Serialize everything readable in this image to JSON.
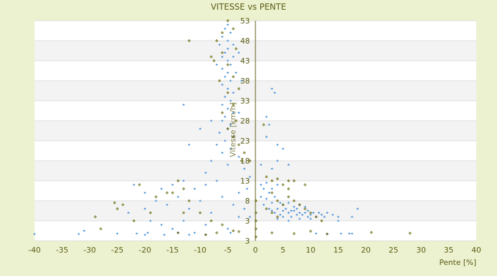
{
  "chart_data": {
    "type": "scatter",
    "title": "VITESSE vs PENTE",
    "xlabel": "Pente [%]",
    "ylabel": "Vitesse [km/h]",
    "xlim": [
      -40,
      40
    ],
    "ylim": [
      -2,
      53
    ],
    "x_ticks": [
      "-40",
      "-35",
      "-30",
      "-25",
      "-20",
      "-15",
      "-10",
      "-5",
      "0",
      "5",
      "10",
      "15",
      "20",
      "25",
      "30",
      "35",
      "40"
    ],
    "y_tick_labels": [
      "53",
      "48",
      "43",
      "38",
      "33",
      "28",
      "23",
      "18",
      "13",
      "8",
      "3",
      "3"
    ],
    "grid": "horizontal bands",
    "legend": "none",
    "colors": {
      "series_a": "#3a88d8",
      "series_b": "#6b6b10",
      "axis": "#5c5c14",
      "background": "#ecf1cf",
      "band": "#f3f3f3"
    },
    "series": [
      {
        "marker": "plus",
        "color": "#3a88d8",
        "points": [
          [
            -5,
            52
          ],
          [
            -5.5,
            51
          ],
          [
            -4.5,
            50
          ],
          [
            -6,
            49
          ],
          [
            -5,
            48
          ],
          [
            -4,
            47
          ],
          [
            -6.5,
            47
          ],
          [
            -5,
            46
          ],
          [
            -5.5,
            45
          ],
          [
            -4,
            44
          ],
          [
            -6,
            44
          ],
          [
            -5,
            43
          ],
          [
            -4.5,
            42
          ],
          [
            -6,
            41
          ],
          [
            -5,
            40
          ],
          [
            -3.5,
            40
          ],
          [
            -5.5,
            39
          ],
          [
            -4.5,
            38
          ],
          [
            -6,
            37
          ],
          [
            -5,
            36
          ],
          [
            -4,
            35
          ],
          [
            -5.5,
            34
          ],
          [
            -4.5,
            33
          ],
          [
            -6,
            32
          ],
          [
            -5,
            31
          ],
          [
            -4,
            30
          ],
          [
            -5.5,
            29
          ],
          [
            -6,
            28
          ],
          [
            -4.5,
            27
          ],
          [
            -5,
            26
          ],
          [
            -6.5,
            25
          ],
          [
            -4,
            24
          ],
          [
            -5.5,
            23
          ],
          [
            -7,
            22
          ],
          [
            -4.5,
            21
          ],
          [
            -6,
            20
          ],
          [
            -3,
            19
          ],
          [
            -8,
            18
          ],
          [
            -5,
            17
          ],
          [
            -2,
            16
          ],
          [
            -9,
            15
          ],
          [
            -1,
            14
          ],
          [
            -13,
            32
          ],
          [
            -10,
            26
          ],
          [
            -12,
            22
          ],
          [
            -8,
            28
          ],
          [
            -3,
            45
          ],
          [
            -2.5,
            38
          ],
          [
            -7,
            42
          ],
          [
            -3,
            30
          ],
          [
            1,
            12
          ],
          [
            1.5,
            11
          ],
          [
            2,
            12.5
          ],
          [
            2.5,
            10
          ],
          [
            3,
            11
          ],
          [
            1,
            9
          ],
          [
            2,
            8.5
          ],
          [
            3.5,
            9
          ],
          [
            4,
            12
          ],
          [
            1.5,
            7
          ],
          [
            2.5,
            6
          ],
          [
            3,
            7.5
          ],
          [
            3.5,
            5
          ],
          [
            4,
            6
          ],
          [
            4.5,
            4.5
          ],
          [
            5,
            5.5
          ],
          [
            5.5,
            6
          ],
          [
            6,
            5
          ],
          [
            6.5,
            4
          ],
          [
            7,
            5.5
          ],
          [
            7.5,
            6
          ],
          [
            8,
            5
          ],
          [
            8.5,
            4.5
          ],
          [
            9,
            5
          ],
          [
            9.5,
            5.5
          ],
          [
            10,
            4.5
          ],
          [
            10.5,
            5
          ],
          [
            11,
            4
          ],
          [
            11.5,
            5
          ],
          [
            12,
            4.5
          ],
          [
            5,
            7
          ],
          [
            6,
            7.5
          ],
          [
            7,
            6.5
          ],
          [
            8,
            7
          ],
          [
            9,
            6.5
          ],
          [
            4,
            3.5
          ],
          [
            6,
            3
          ],
          [
            8,
            3.5
          ],
          [
            10,
            3.5
          ],
          [
            12.5,
            4
          ],
          [
            13,
            5
          ],
          [
            14,
            4.5
          ],
          [
            15,
            4
          ],
          [
            15,
            3
          ],
          [
            17.5,
            4
          ],
          [
            18.5,
            6
          ],
          [
            5,
            4
          ],
          [
            6.5,
            5.5
          ],
          [
            7.5,
            4.5
          ],
          [
            9.5,
            4
          ],
          [
            3,
            5.5
          ],
          [
            4.5,
            7.5
          ],
          [
            3,
            36
          ],
          [
            3.5,
            35
          ],
          [
            2,
            29
          ],
          [
            2,
            24
          ],
          [
            2.5,
            27
          ],
          [
            4,
            22
          ],
          [
            5,
            21
          ],
          [
            4,
            18
          ],
          [
            6,
            17
          ],
          [
            3,
            16
          ],
          [
            1,
            17
          ],
          [
            -22,
            12
          ],
          [
            -20,
            10
          ],
          [
            -17,
            11
          ],
          [
            -15,
            12
          ],
          [
            -13,
            13
          ],
          [
            -11,
            11
          ],
          [
            -9,
            12
          ],
          [
            -7,
            13
          ],
          [
            -18,
            8
          ],
          [
            -16,
            7
          ],
          [
            -14,
            9
          ],
          [
            -12,
            6
          ],
          [
            -10,
            8
          ],
          [
            -8,
            5
          ],
          [
            -6,
            9
          ],
          [
            -4,
            7
          ],
          [
            -3,
            4
          ],
          [
            -20,
            6
          ],
          [
            -23,
            5
          ],
          [
            -19,
            3
          ],
          [
            -17,
            2
          ],
          [
            -15,
            1
          ],
          [
            -13,
            3
          ],
          [
            -11,
            0
          ],
          [
            -9,
            2
          ],
          [
            -5,
            1
          ],
          [
            -3,
            10
          ],
          [
            -2,
            6
          ],
          [
            -1,
            4
          ],
          [
            -1.5,
            11
          ],
          [
            -40,
            -0.3
          ],
          [
            -32,
            -0.3
          ],
          [
            -31,
            0.5
          ],
          [
            -25,
            -0.2
          ],
          [
            -21.5,
            -0.2
          ],
          [
            -20,
            -0.5
          ],
          [
            -19.5,
            0
          ],
          [
            -16.5,
            -0.5
          ],
          [
            -14,
            0
          ],
          [
            -12,
            -0.5
          ],
          [
            -9,
            -0.5
          ],
          [
            -4.5,
            0
          ],
          [
            11,
            -0.2
          ],
          [
            13,
            -0.2
          ],
          [
            15.5,
            -0.2
          ],
          [
            17,
            -0.2
          ],
          [
            17.5,
            -0.2
          ]
        ]
      },
      {
        "marker": "diamond",
        "color": "#6b6b10",
        "points": [
          [
            -6,
            50
          ],
          [
            -5,
            53
          ],
          [
            -4,
            51
          ],
          [
            -7,
            48
          ],
          [
            -3.5,
            46
          ],
          [
            -6,
            45
          ],
          [
            -5,
            42
          ],
          [
            -7.5,
            43
          ],
          [
            -4,
            39
          ],
          [
            -6.5,
            38
          ],
          [
            -3,
            36
          ],
          [
            -5,
            35
          ],
          [
            -4,
            32
          ],
          [
            -6,
            30
          ],
          [
            -3.5,
            28
          ],
          [
            -5,
            26
          ],
          [
            -4,
            24
          ],
          [
            -3,
            22
          ],
          [
            -2,
            20
          ],
          [
            -1,
            18
          ],
          [
            -12,
            48
          ],
          [
            -8,
            44
          ],
          [
            -2.5,
            18
          ],
          [
            -15,
            10
          ],
          [
            -18,
            9
          ],
          [
            -24,
            7
          ],
          [
            -25,
            6
          ],
          [
            -29,
            4
          ],
          [
            -28,
            1
          ],
          [
            -25.5,
            7.5
          ],
          [
            -21,
            12
          ],
          [
            -19,
            5
          ],
          [
            -16,
            10
          ],
          [
            -14,
            13
          ],
          [
            -13,
            11
          ],
          [
            -12,
            8
          ],
          [
            -10,
            5
          ],
          [
            -8,
            3
          ],
          [
            -6,
            2
          ],
          [
            -4,
            0.5
          ],
          [
            -3,
            0.3
          ],
          [
            -7,
            0
          ],
          [
            -9,
            -0.5
          ],
          [
            -14,
            0
          ],
          [
            -22,
            3
          ],
          [
            -13,
            5
          ],
          [
            2,
            14
          ],
          [
            3,
            13
          ],
          [
            4,
            13.5
          ],
          [
            5,
            12
          ],
          [
            6,
            11
          ],
          [
            3,
            10
          ],
          [
            4,
            8
          ],
          [
            5,
            7
          ],
          [
            6,
            9
          ],
          [
            7,
            8
          ],
          [
            8,
            7
          ],
          [
            2,
            6
          ],
          [
            3,
            5
          ],
          [
            4,
            4
          ],
          [
            9,
            6
          ],
          [
            10,
            5
          ],
          [
            11,
            4
          ],
          [
            12,
            3
          ],
          [
            6,
            13
          ],
          [
            7,
            13
          ],
          [
            9,
            12
          ],
          [
            1.5,
            27
          ],
          [
            3,
            0
          ],
          [
            7,
            -0.2
          ],
          [
            21,
            0.1
          ],
          [
            28,
            -0.1
          ],
          [
            13,
            -0.3
          ],
          [
            10,
            0.4
          ],
          [
            0.1,
            3
          ],
          [
            0.1,
            5
          ],
          [
            0.1,
            8
          ],
          [
            0.1,
            1
          ],
          [
            0.1,
            -1
          ]
        ]
      }
    ]
  }
}
